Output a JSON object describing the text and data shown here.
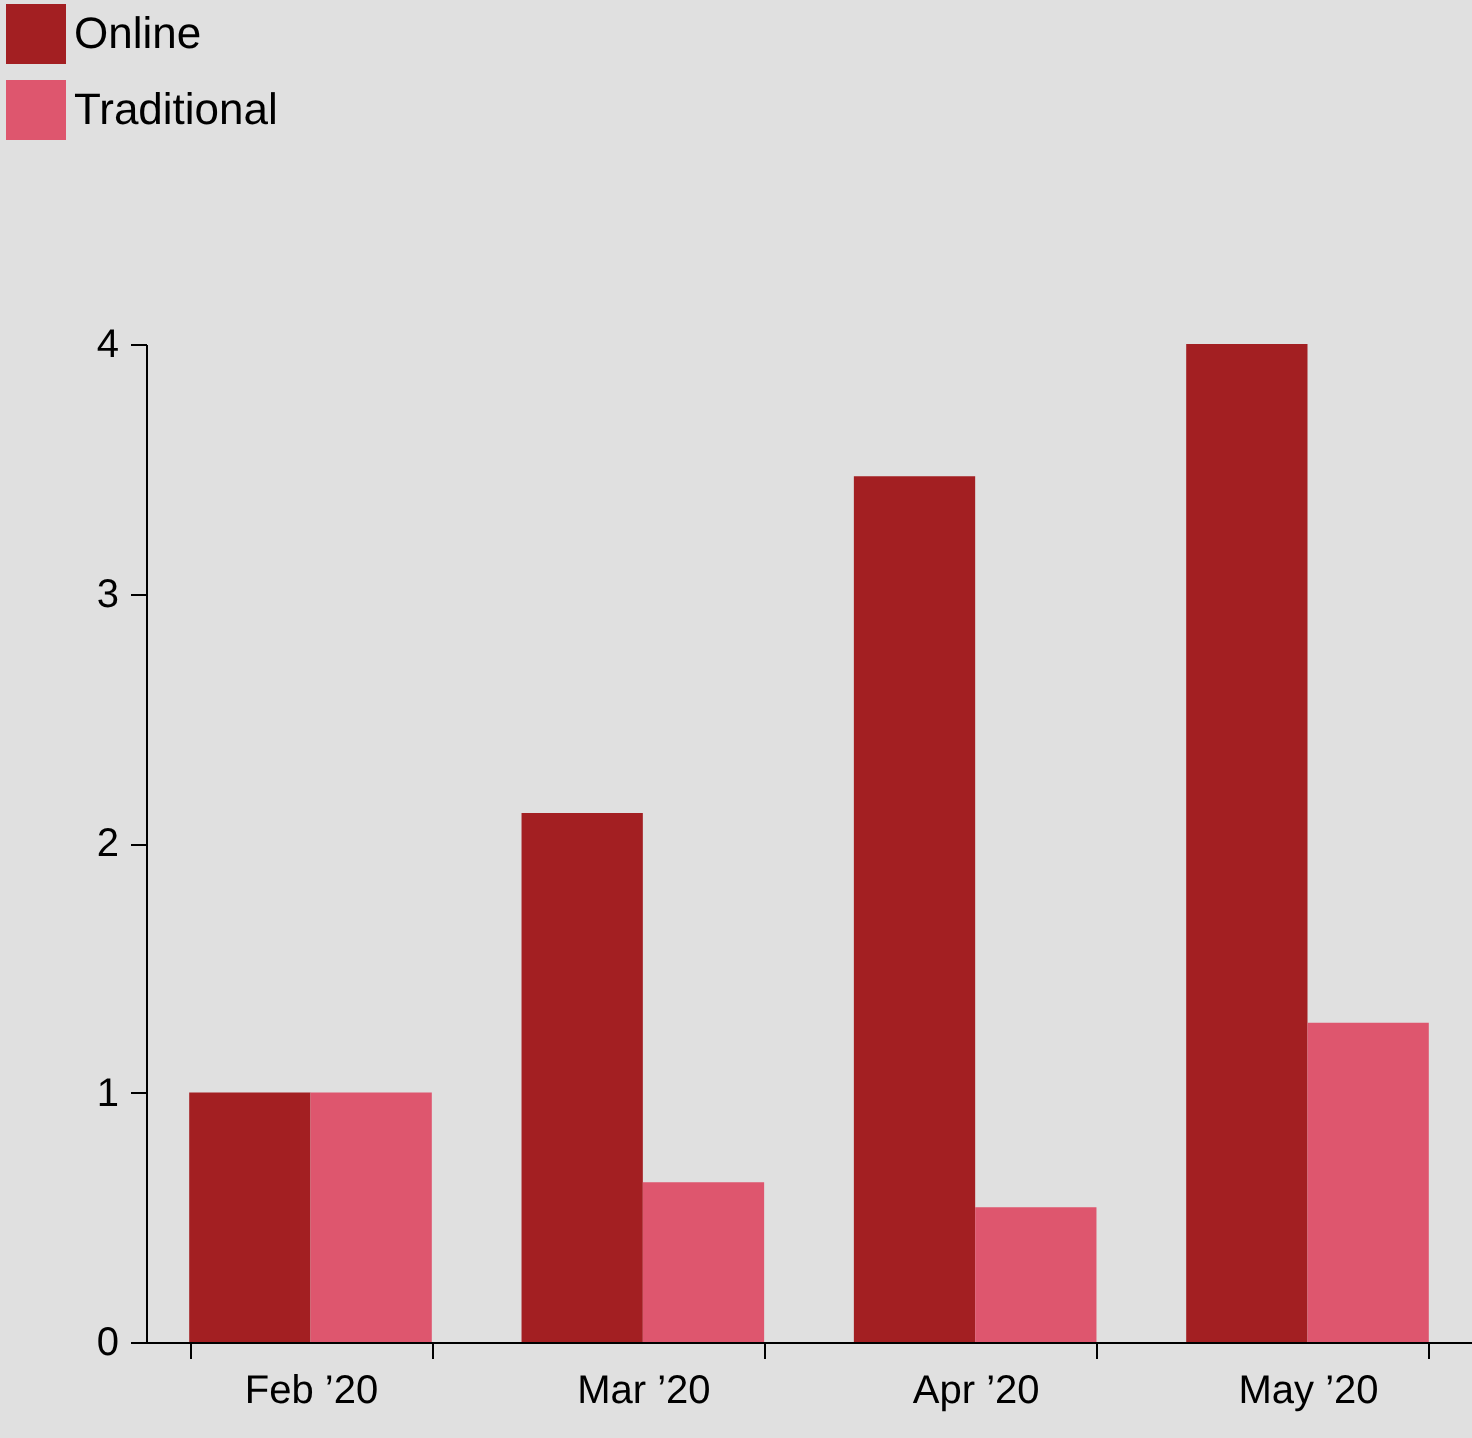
{
  "chart_data": {
    "type": "bar",
    "categories": [
      "Feb ’20",
      "Mar ’20",
      "Apr ’20",
      "May ’20"
    ],
    "series": [
      {
        "name": "Online",
        "color": "#a31f22",
        "values": [
          1.0,
          2.12,
          3.47,
          4.0
        ]
      },
      {
        "name": "Traditional",
        "color": "#de566e",
        "values": [
          1.0,
          0.64,
          0.54,
          1.28
        ]
      }
    ],
    "ylim": [
      0,
      4
    ],
    "yticks": [
      0,
      1,
      2,
      3,
      4
    ],
    "legend": "top left"
  }
}
